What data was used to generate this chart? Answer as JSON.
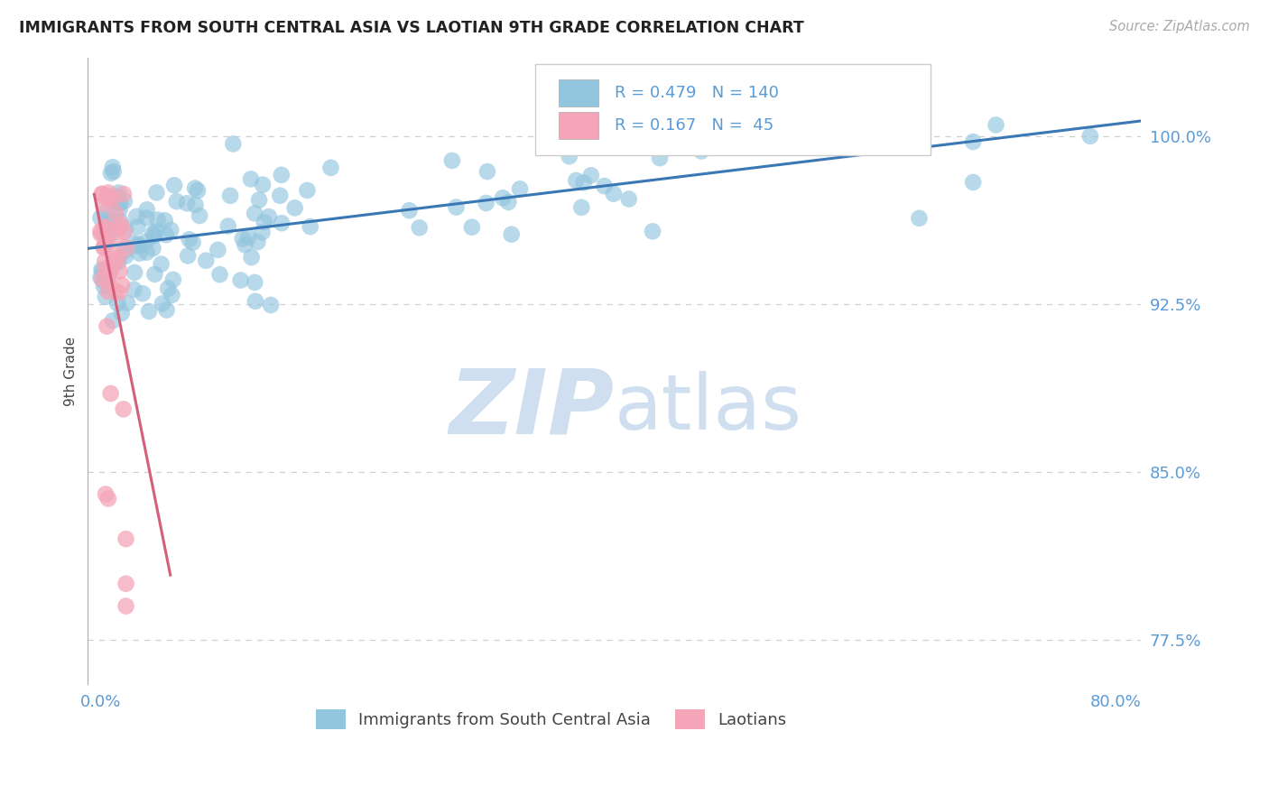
{
  "title": "IMMIGRANTS FROM SOUTH CENTRAL ASIA VS LAOTIAN 9TH GRADE CORRELATION CHART",
  "source_text": "Source: ZipAtlas.com",
  "ylabel": "9th Grade",
  "xlim": [
    -0.01,
    0.82
  ],
  "ylim": [
    0.755,
    1.035
  ],
  "xtick_labels": [
    "0.0%",
    "80.0%"
  ],
  "ytick_labels": [
    "77.5%",
    "85.0%",
    "92.5%",
    "100.0%"
  ],
  "ytick_values": [
    0.775,
    0.85,
    0.925,
    1.0
  ],
  "xtick_values": [
    0.0,
    0.8
  ],
  "legend_label1": "Immigrants from South Central Asia",
  "legend_label2": "Laotians",
  "r1": 0.479,
  "n1": 140,
  "r2": 0.167,
  "n2": 45,
  "color_blue": "#92c5de",
  "color_pink": "#f4a6b8",
  "color_line_blue": "#3a78b5",
  "color_line_pink": "#d45f7a",
  "watermark_color": "#d0dff0",
  "title_color": "#222222",
  "axis_color": "#5b9bd5",
  "grid_color": "#bbbbbb",
  "background_color": "#ffffff"
}
